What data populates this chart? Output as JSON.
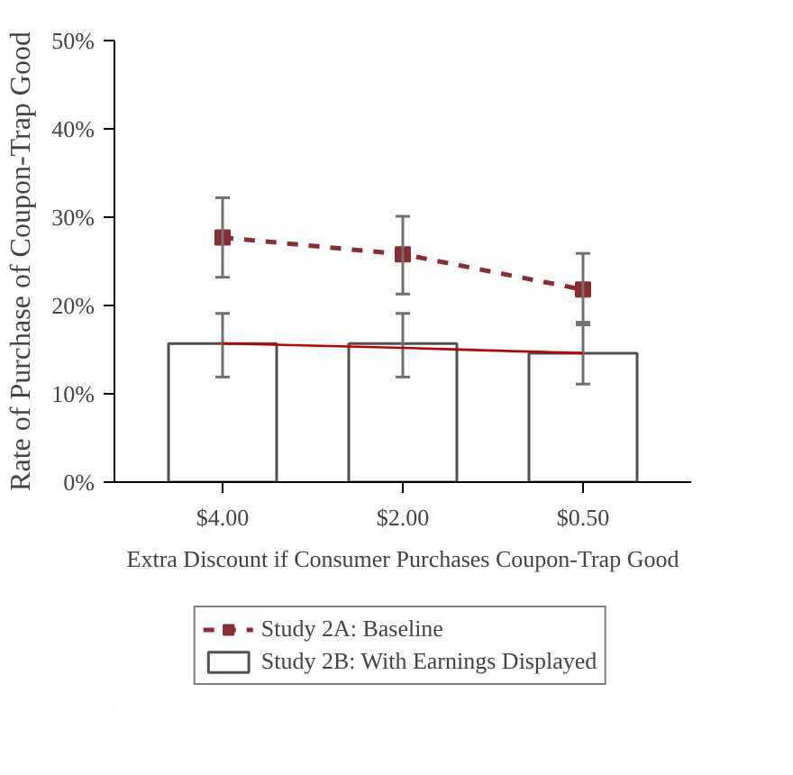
{
  "chart_data": {
    "type": "bar",
    "xlabel": "Extra Discount if Consumer Purchases Coupon-Trap Good",
    "ylabel": "Rate of Purchase of Coupon-Trap Good",
    "categories": [
      "$4.00",
      "$2.00",
      "$0.50"
    ],
    "series": [
      {
        "name": "Study 2B: With Earnings Displayed",
        "type": "bar",
        "color": "#ffffff",
        "values": [
          15.7,
          15.7,
          14.6
        ],
        "errors": [
          [
            11.9,
            19.1
          ],
          [
            11.9,
            19.1
          ],
          [
            11.1,
            18.1
          ]
        ]
      },
      {
        "type": "line",
        "color": "#c00000",
        "line_style": "solid",
        "marker": "none",
        "values": [
          15.7,
          15.2,
          14.6
        ]
      },
      {
        "name": "Study 2A: Baseline",
        "type": "line",
        "color": "#8b2b32",
        "line_style": "dashed",
        "marker": "square",
        "values": [
          27.7,
          25.8,
          21.8
        ],
        "errors": [
          [
            23.2,
            32.2
          ],
          [
            21.3,
            30.1
          ],
          [
            17.8,
            25.9
          ]
        ]
      }
    ],
    "ylim": [
      0,
      50
    ],
    "yticks": [
      {
        "value": 0,
        "label": "0%"
      },
      {
        "value": 10,
        "label": "10%"
      },
      {
        "value": 20,
        "label": "20%"
      },
      {
        "value": 30,
        "label": "30%"
      },
      {
        "value": 40,
        "label": "40%"
      },
      {
        "value": 50,
        "label": "50%"
      }
    ],
    "grid": false,
    "legend": "bottom"
  }
}
